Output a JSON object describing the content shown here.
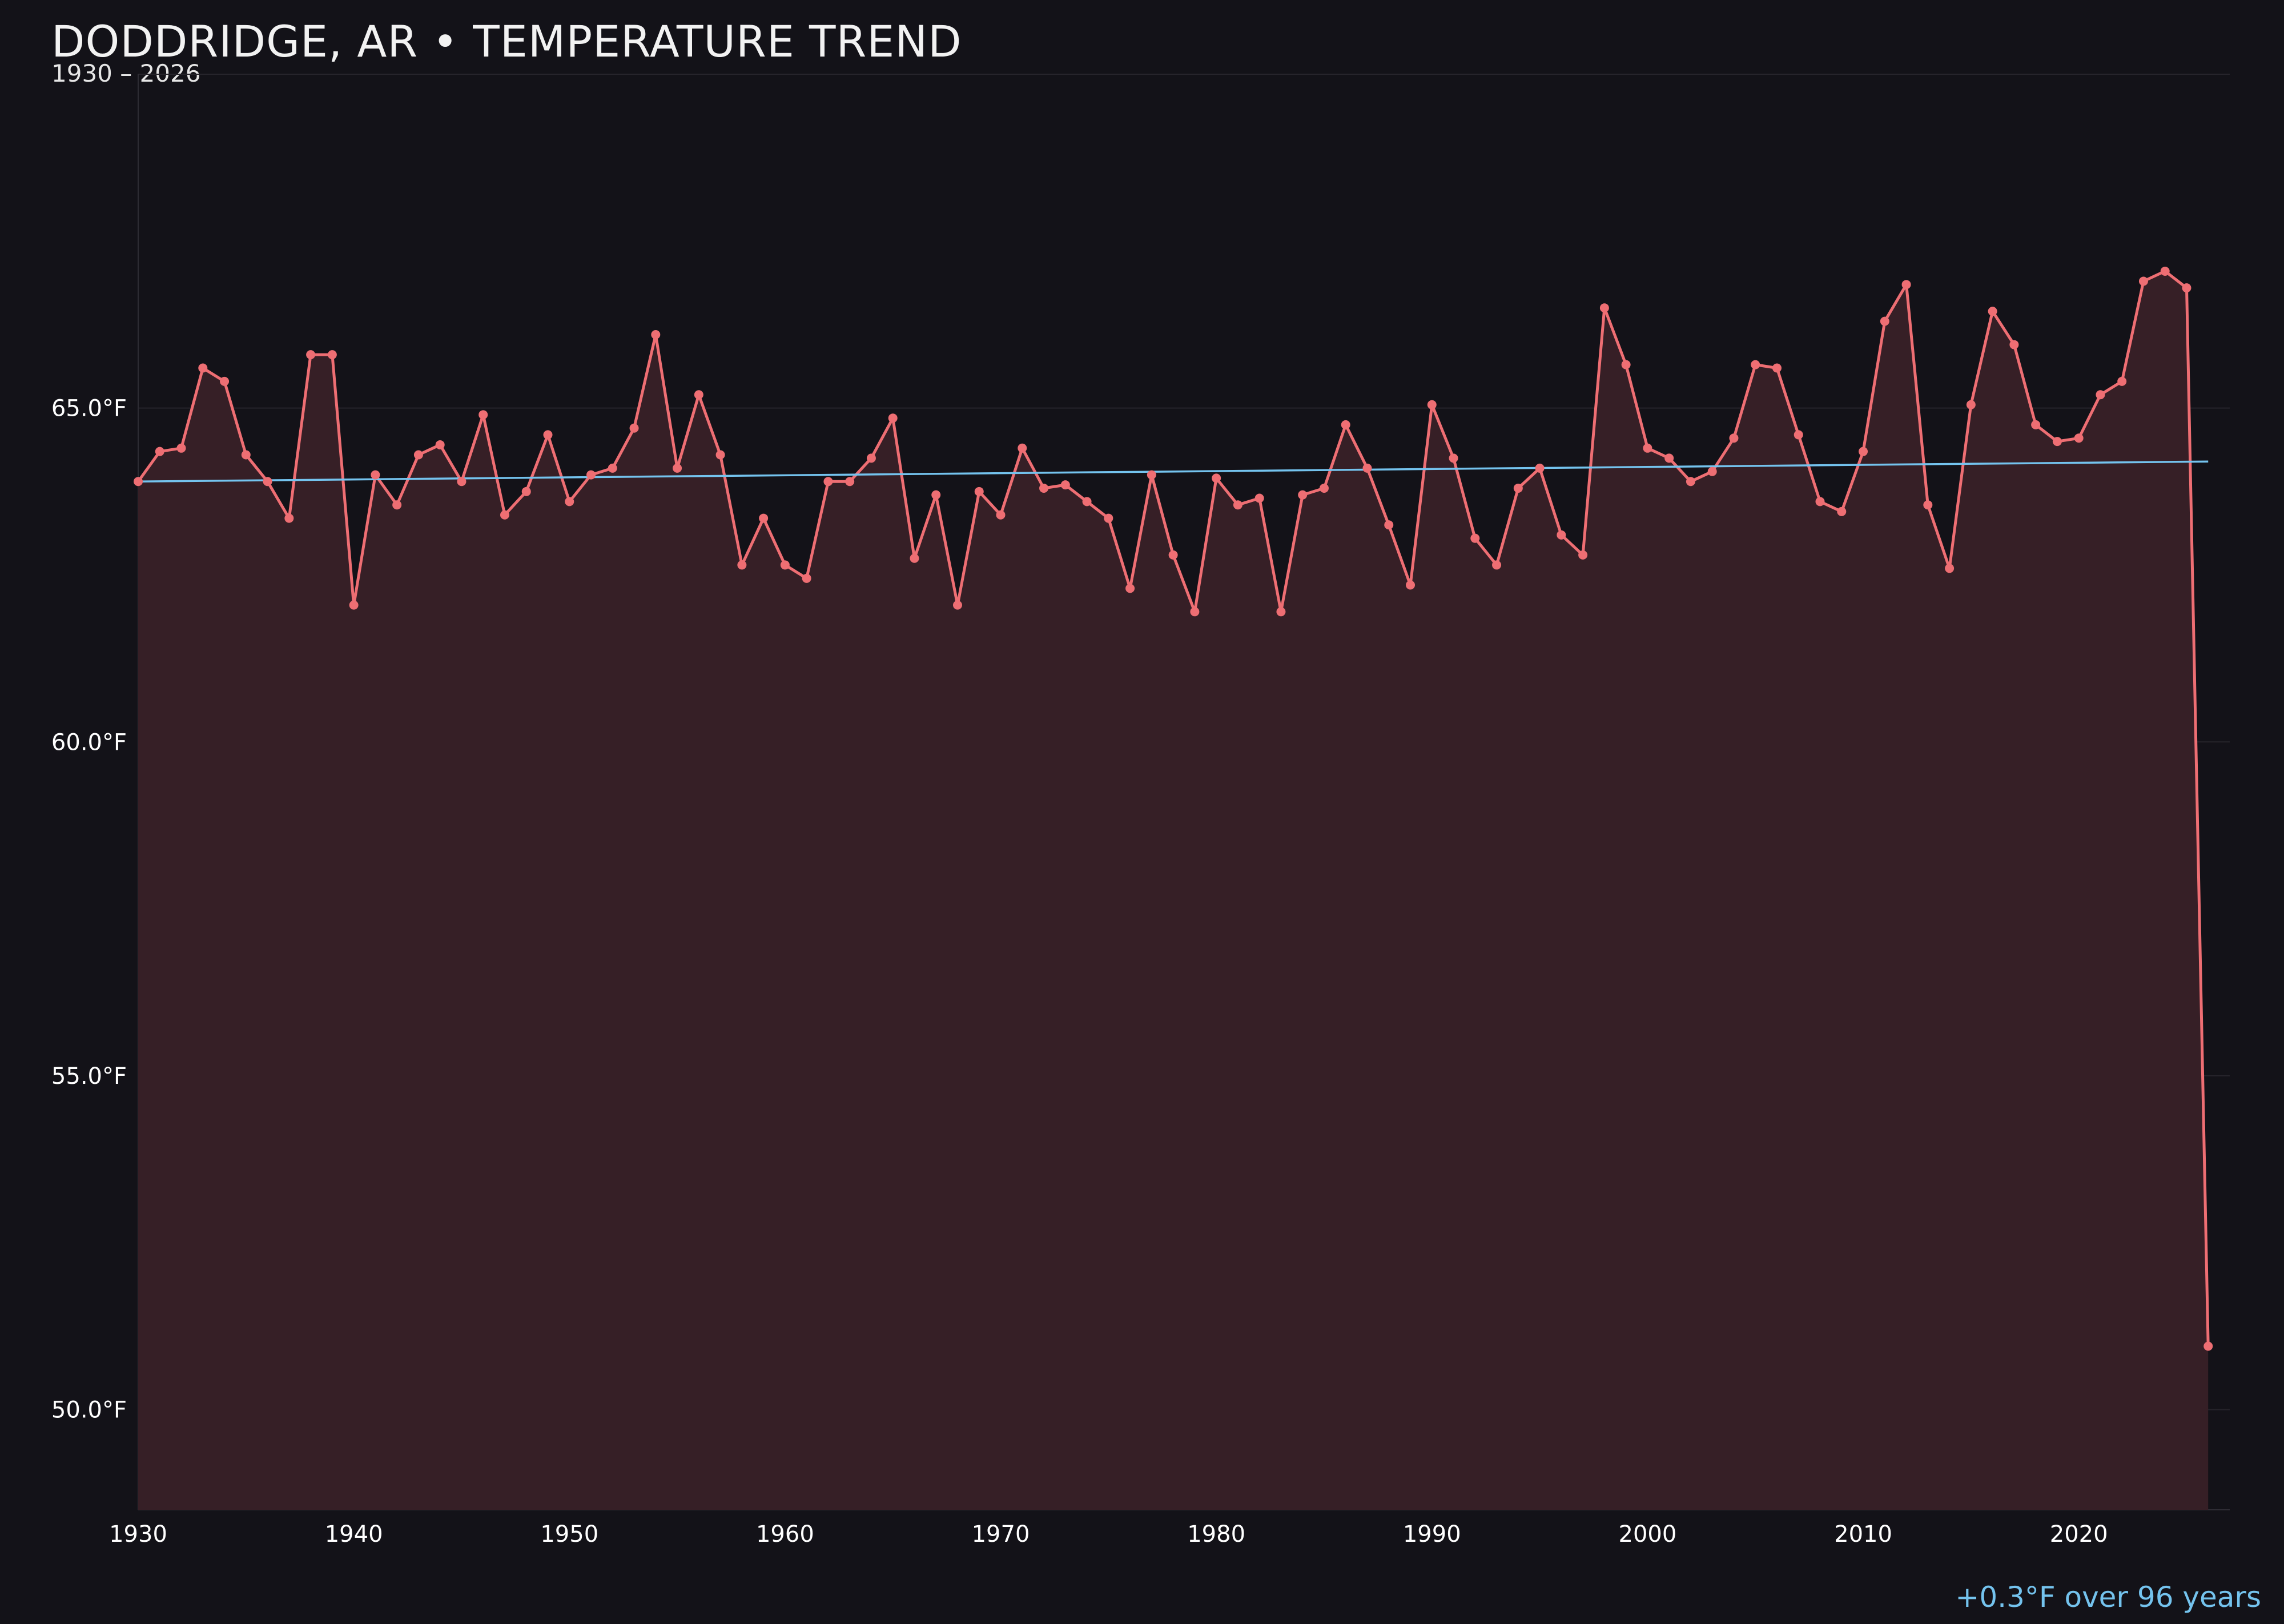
{
  "header": {
    "title": "DODDRIDGE, AR • TEMPERATURE TREND",
    "subtitle": "1930 – 2026"
  },
  "footer": {
    "trend_note": "+0.3°F over 96 years"
  },
  "colors": {
    "background": "#131218",
    "series_line": "#ee6e73",
    "series_fill": "#361f26",
    "trend_line": "#74c3ee",
    "grid": "#26242b",
    "tick_text": "#ffffff"
  },
  "chart_data": {
    "type": "area",
    "title": "DODDRIDGE, AR • TEMPERATURE TREND",
    "subtitle": "1930 – 2026",
    "xlabel": "",
    "ylabel": "",
    "xlim": [
      1930,
      2027
    ],
    "ylim": [
      48.5,
      70.0
    ],
    "grid": true,
    "x_ticks": [
      1930,
      1940,
      1950,
      1960,
      1970,
      1980,
      1990,
      2000,
      2010,
      2020
    ],
    "x_tick_labels": [
      "1930",
      "1940",
      "1950",
      "1960",
      "1970",
      "1980",
      "1990",
      "2000",
      "2010",
      "2020"
    ],
    "y_ticks": [
      50,
      55,
      60,
      65
    ],
    "y_tick_labels": [
      "50.0°F",
      "55.0°F",
      "60.0°F",
      "65.0°F"
    ],
    "x": [
      1930,
      1931,
      1932,
      1933,
      1934,
      1935,
      1936,
      1937,
      1938,
      1939,
      1940,
      1941,
      1942,
      1943,
      1944,
      1945,
      1946,
      1947,
      1948,
      1949,
      1950,
      1951,
      1952,
      1953,
      1954,
      1955,
      1956,
      1957,
      1958,
      1959,
      1960,
      1961,
      1962,
      1963,
      1964,
      1965,
      1966,
      1967,
      1968,
      1969,
      1970,
      1971,
      1972,
      1973,
      1974,
      1975,
      1976,
      1977,
      1978,
      1979,
      1980,
      1981,
      1982,
      1983,
      1984,
      1985,
      1986,
      1987,
      1988,
      1989,
      1990,
      1991,
      1992,
      1993,
      1994,
      1995,
      1996,
      1997,
      1998,
      1999,
      2000,
      2001,
      2002,
      2003,
      2004,
      2005,
      2006,
      2007,
      2008,
      2009,
      2010,
      2011,
      2012,
      2013,
      2014,
      2015,
      2016,
      2017,
      2018,
      2019,
      2020,
      2021,
      2022,
      2023,
      2024,
      2025,
      2026
    ],
    "series": [
      {
        "values": [
          63.9,
          64.35,
          64.4,
          65.6,
          65.4,
          64.3,
          63.9,
          63.35,
          65.8,
          65.8,
          62.05,
          64.0,
          63.55,
          64.3,
          64.45,
          63.9,
          64.9,
          63.4,
          63.75,
          64.6,
          63.6,
          64.0,
          64.1,
          64.7,
          66.1,
          64.1,
          65.2,
          64.3,
          62.65,
          63.35,
          62.65,
          62.45,
          63.9,
          63.9,
          64.25,
          64.85,
          62.75,
          63.7,
          62.05,
          63.75,
          63.4,
          64.4,
          63.8,
          63.85,
          63.6,
          63.35,
          62.3,
          64.0,
          62.8,
          61.95,
          63.95,
          63.55,
          63.65,
          61.95,
          63.7,
          63.8,
          64.75,
          64.1,
          63.25,
          62.35,
          65.05,
          64.25,
          63.05,
          62.65,
          63.8,
          64.1,
          63.1,
          62.8,
          66.5,
          65.65,
          64.4,
          64.25,
          63.9,
          64.05,
          64.55,
          65.65,
          65.6,
          64.6,
          63.6,
          63.45,
          64.35,
          66.3,
          66.85,
          63.55,
          62.6,
          65.05,
          66.45,
          65.95,
          64.75,
          64.5,
          64.55,
          65.2,
          65.4,
          66.9,
          67.05,
          66.8,
          50.95
        ]
      }
    ],
    "trend": {
      "start_year": 1930,
      "end_year": 2026,
      "start_value": 63.9,
      "end_value": 64.2
    }
  }
}
